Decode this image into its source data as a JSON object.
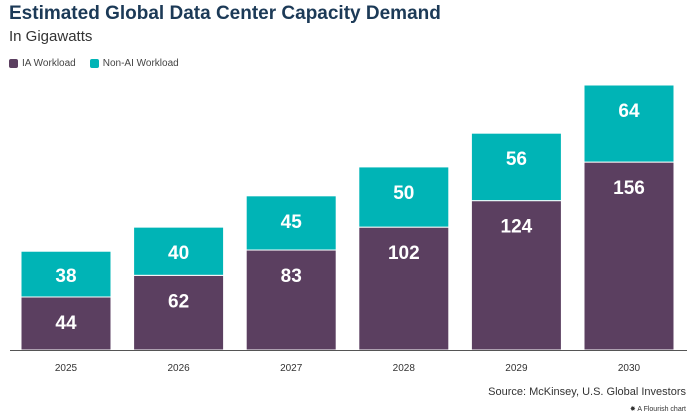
{
  "chart_data": {
    "type": "bar",
    "stacked": true,
    "title": "Estimated Global Data Center Capacity Demand",
    "subtitle": "In Gigawatts",
    "categories": [
      "2025",
      "2026",
      "2027",
      "2028",
      "2029",
      "2030"
    ],
    "series": [
      {
        "name": "IA Workload",
        "color": "#5b3f60",
        "values": [
          44,
          62,
          83,
          102,
          124,
          156
        ]
      },
      {
        "name": "Non-AI Workload",
        "color": "#00b4b6",
        "values": [
          38,
          40,
          45,
          50,
          56,
          64
        ]
      }
    ],
    "ylim": [
      0,
      220
    ],
    "grid": false,
    "legend": "top-left",
    "source": "Source: McKinsey, U.S. Global Investors",
    "credit": "A Flourish chart"
  }
}
